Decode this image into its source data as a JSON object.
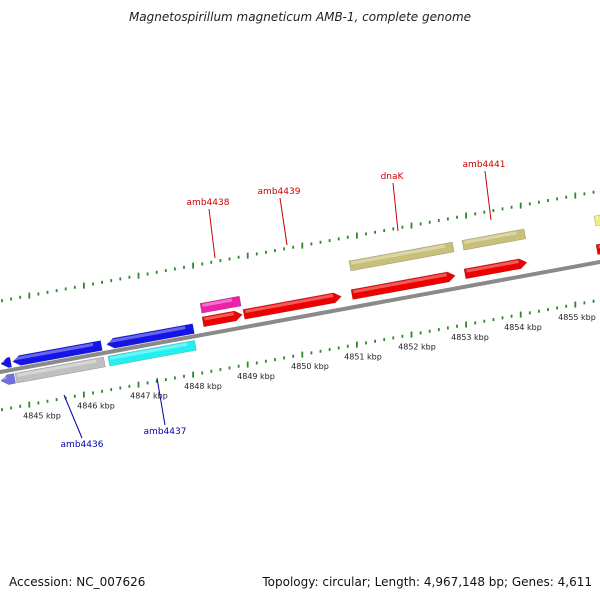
{
  "title": "Magnetospirillum magneticum AMB-1, complete genome",
  "footer": {
    "accession": "Accession: NC_007626",
    "topology": "Topology: circular; Length: 4,967,148 bp; Genes: 4,611"
  },
  "colors": {
    "backbone": "#8a8a8a",
    "tick": "#2a8a2a",
    "label_top": "#cc0000",
    "label_bottom": "#0000aa",
    "kbp_text": "#222222"
  },
  "kbp_labels": [
    "4845 kbp",
    "4846 kbp",
    "4847 kbp",
    "4848 kbp",
    "4849 kbp",
    "4850 kbp",
    "4851 kbp",
    "4852 kbp",
    "4853 kbp",
    "4854 kbp",
    "4855 kbp"
  ],
  "gene_labels_top": [
    "amb4438",
    "amb4439",
    "dnaK",
    "amb4441"
  ],
  "gene_labels_bottom": [
    "amb4436",
    "amb4437"
  ],
  "gene_colors": {
    "red": "#ee0000",
    "magenta": "#ee22aa",
    "khaki": "#c8c07a",
    "blue": "#1414e6",
    "gray": "#c0c0c0",
    "cyan": "#22f0f0",
    "slateblue": "#7070e0",
    "yellow": "#f0ec80"
  }
}
